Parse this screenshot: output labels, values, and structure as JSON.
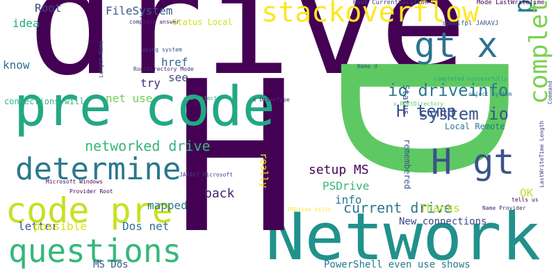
{
  "words": [
    {
      "text": "drive",
      "color": "#440154",
      "size": 210,
      "angle": 0
    },
    {
      "text": "Network",
      "color": "#21918c",
      "size": 94,
      "angle": 0
    },
    {
      "text": "H",
      "color": "#440154",
      "size": 300,
      "angle": 0
    },
    {
      "text": "D",
      "color": "#5ec962",
      "size": 330,
      "angle": 90
    },
    {
      "text": "pre code",
      "color": "#22a884",
      "size": 78,
      "angle": 0
    },
    {
      "text": "code pre",
      "color": "#c8e020",
      "size": 50,
      "angle": 0
    },
    {
      "text": "questions",
      "color": "#35b779",
      "size": 46,
      "angle": 0
    },
    {
      "text": "determine",
      "color": "#2a788e",
      "size": 44,
      "angle": 0
    },
    {
      "text": "stackoverflow",
      "color": "#fde725",
      "size": 40,
      "angle": 0
    },
    {
      "text": "gt x",
      "color": "#2c728e",
      "size": 50,
      "angle": 0
    },
    {
      "text": "H gt",
      "color": "#3b528b",
      "size": 50,
      "angle": 0
    },
    {
      "text": "powershell",
      "color": "#2a788e",
      "size": 36,
      "angle": 270
    },
    {
      "text": "completed",
      "color": "#7ad151",
      "size": 36,
      "angle": 270
    },
    {
      "text": "io driveinfo",
      "color": "#2a788e",
      "size": 24,
      "angle": 0
    },
    {
      "text": "H temp",
      "color": "#3b528b",
      "size": 24,
      "angle": 0
    },
    {
      "text": "system io",
      "color": "#3b528b",
      "size": 24,
      "angle": 0
    },
    {
      "text": "networked drive",
      "color": "#35b779",
      "size": 20,
      "angle": 0
    },
    {
      "text": "current drive",
      "color": "#2a788e",
      "size": 20,
      "angle": 0
    },
    {
      "text": "setup MS",
      "color": "#440154",
      "size": 18,
      "angle": 0
    },
    {
      "text": "PSDrive",
      "color": "#35b779",
      "size": 16,
      "angle": 0
    },
    {
      "text": "info",
      "color": "#2a788e",
      "size": 16,
      "angle": 0
    },
    {
      "text": "Thanks",
      "color": "#b5de2b",
      "size": 16,
      "angle": 0
    },
    {
      "text": "OK",
      "color": "#bddf26",
      "size": 16,
      "angle": 0
    },
    {
      "text": "back",
      "color": "#481f70",
      "size": 18,
      "angle": 0
    },
    {
      "text": "mapped",
      "color": "#2a788e",
      "size": 16,
      "angle": 0
    },
    {
      "text": "letter",
      "color": "#3b528b",
      "size": 16,
      "angle": 0
    },
    {
      "text": "possible",
      "color": "#d8e219",
      "size": 16,
      "angle": 0
    },
    {
      "text": "Dos net",
      "color": "#2c728e",
      "size": 16,
      "angle": 0
    },
    {
      "text": "New connections",
      "color": "#414487",
      "size": 14,
      "angle": 0
    },
    {
      "text": "PowerShell even use shows",
      "color": "#2a788e",
      "size": 14,
      "angle": 0
    },
    {
      "text": "MS Dos",
      "color": "#39568c",
      "size": 14,
      "angle": 0
    },
    {
      "text": "Root",
      "color": "#414487",
      "size": 16,
      "angle": 0
    },
    {
      "text": "FileSystem",
      "color": "#39568c",
      "size": 16,
      "angle": 0
    },
    {
      "text": "idea",
      "color": "#22a884",
      "size": 16,
      "angle": 0
    },
    {
      "text": "know",
      "color": "#2c728e",
      "size": 16,
      "angle": 0
    },
    {
      "text": "try",
      "color": "#482878",
      "size": 16,
      "angle": 0
    },
    {
      "text": "see",
      "color": "#3e4a89",
      "size": 16,
      "angle": 0
    },
    {
      "text": "href",
      "color": "#31688e",
      "size": 16,
      "angle": 0
    },
    {
      "text": "net use",
      "color": "#6ece58",
      "size": 16,
      "angle": 0
    },
    {
      "text": "connections will",
      "color": "#35b779",
      "size": 12,
      "angle": 0
    },
    {
      "text": "Status Local",
      "color": "#d0e11c",
      "size": 12,
      "angle": 0
    },
    {
      "text": "Local Remote",
      "color": "#2a788e",
      "size": 12,
      "angle": 0
    },
    {
      "text": "Status",
      "color": "#3b528b",
      "size": 12,
      "angle": 90
    },
    {
      "text": "remembered",
      "color": "#39568c",
      "size": 12,
      "angle": 90
    },
    {
      "text": "really",
      "color": "#fde725",
      "size": 14,
      "angle": 90
    },
    {
      "text": "Root CurrentLocation",
      "color": "#414487",
      "size": 9,
      "angle": 0
    },
    {
      "text": "Mode LastWriteTime",
      "color": "#440154",
      "size": 9,
      "angle": 0
    },
    {
      "text": "spmalfpl JARAVJ",
      "color": "#3b528b",
      "size": 9,
      "angle": 0
    },
    {
      "text": "complete answer",
      "color": "#482878",
      "size": 8,
      "angle": 0
    },
    {
      "text": "using system",
      "color": "#3e4a89",
      "size": 8,
      "angle": 0
    },
    {
      "text": "RootDirectory Mode",
      "color": "#482878",
      "size": 8,
      "angle": 0
    },
    {
      "text": "give us",
      "color": "#440154",
      "size": 8,
      "angle": 0
    },
    {
      "text": "Name d",
      "color": "#3b528b",
      "size": 8,
      "angle": 0
    },
    {
      "text": "completed successfully",
      "color": "#22a884",
      "size": 8,
      "angle": 0
    },
    {
      "text": "x RootDirectory",
      "color": "#5ec962",
      "size": 8,
      "angle": 0
    },
    {
      "text": "object system",
      "color": "#2a788e",
      "size": 8,
      "angle": 0
    },
    {
      "text": "new object",
      "color": "#35b779",
      "size": 8,
      "angle": 0
    },
    {
      "text": "x DriveType",
      "color": "#482878",
      "size": 8,
      "angle": 0
    },
    {
      "text": "JARAVJ Microsoft",
      "color": "#443983",
      "size": 8,
      "angle": 0
    },
    {
      "text": "Microsoft Windows",
      "color": "#440154",
      "size": 8,
      "angle": 0
    },
    {
      "text": "Provider Root",
      "color": "#440154",
      "size": 8,
      "angle": 0
    },
    {
      "text": "PSDrive tells",
      "color": "#fde725",
      "size": 8,
      "angle": 0
    },
    {
      "text": "Name Provider",
      "color": "#482878",
      "size": 8,
      "angle": 0
    },
    {
      "text": "tells us",
      "color": "#440154",
      "size": 8,
      "angle": 0
    },
    {
      "text": "Length Name",
      "color": "#3b528b",
      "size": 8,
      "angle": 270
    },
    {
      "text": "LastWriteTime Length",
      "color": "#443983",
      "size": 8,
      "angle": 270
    },
    {
      "text": "Command",
      "color": "#3b528b",
      "size": 8,
      "angle": 270
    }
  ]
}
